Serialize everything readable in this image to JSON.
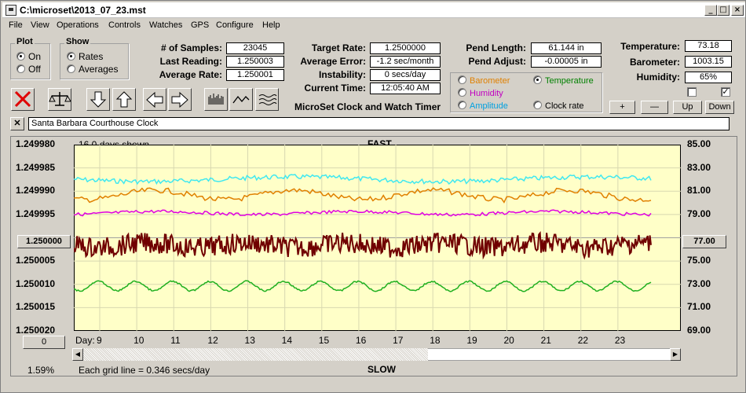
{
  "window": {
    "title": "C:\\microset\\2013_07_23.mst"
  },
  "menu": [
    "File",
    "View",
    "Operations",
    "Controls",
    "Watches",
    "GPS",
    "Configure",
    "Help"
  ],
  "plot_group": {
    "title": "Plot",
    "options": [
      {
        "label": "On",
        "checked": true
      },
      {
        "label": "Off",
        "checked": false
      }
    ]
  },
  "show_group": {
    "title": "Show",
    "options": [
      {
        "label": "Rates",
        "checked": true
      },
      {
        "label": "Averages",
        "checked": false
      }
    ]
  },
  "stats": {
    "samples_label": "# of Samples:",
    "samples": "23045",
    "last_reading_label": "Last Reading:",
    "last_reading": "1.250003",
    "average_rate_label": "Average Rate:",
    "average_rate": "1.250001",
    "target_rate_label": "Target Rate:",
    "target_rate": "1.2500000",
    "average_error_label": "Average Error:",
    "average_error": "-1.2 sec/month",
    "instability_label": "Instability:",
    "instability": "0 secs/day",
    "current_time_label": "Current Time:",
    "current_time": "12:05:40 AM",
    "pend_length_label": "Pend Length:",
    "pend_length": "61.144 in",
    "pend_adjust_label": "Pend Adjust:",
    "pend_adjust": "-0.00005 in",
    "temperature_label": "Temperature:",
    "temperature": "73.18",
    "barometer_label": "Barometer:",
    "barometer": "1003.15",
    "humidity_label": "Humidity:",
    "humidity": "65%"
  },
  "app_name": "MicroSet Clock and Watch Timer",
  "sensor_options": [
    {
      "label": "Barometer",
      "color": "#e08000",
      "checked": false
    },
    {
      "label": "Temperature",
      "color": "#008000",
      "checked": true
    },
    {
      "label": "Humidity",
      "color": "#c000c0",
      "checked": false
    },
    {
      "label": "Amplitude",
      "color": "#00a0e0",
      "checked": false
    },
    {
      "label": "Clock rate",
      "color": "#000000",
      "checked": false
    }
  ],
  "scale_buttons": [
    "+",
    "—",
    "Up",
    "Down"
  ],
  "checkboxes": [
    {
      "checked": false
    },
    {
      "checked": true
    }
  ],
  "clock_name": "Santa Barbara Courthouse Clock",
  "chart": {
    "days_shown": "16.0 days shown",
    "top_label": "FAST",
    "bottom_label": "SLOW",
    "day_prefix": "Day:",
    "grid_note": "Each grid line = 0.346 secs/day",
    "percent": "1.59%",
    "left_button": "1.250000",
    "right_button": "77.00",
    "offset_button": "0"
  },
  "chart_data": {
    "type": "line",
    "title": "FAST",
    "xlabel": "Day:",
    "x_ticks": [
      9,
      10,
      11,
      12,
      13,
      14,
      15,
      16,
      17,
      18,
      19,
      20,
      21,
      22,
      23
    ],
    "left_axis_ticks": [
      "1.249980",
      "1.249985",
      "1.249990",
      "1.249995",
      "1.250000",
      "1.250005",
      "1.250010",
      "1.250015",
      "1.250020"
    ],
    "right_axis_ticks": [
      "85.00",
      "83.00",
      "81.00",
      "79.00",
      "77.00",
      "75.00",
      "73.00",
      "71.00",
      "69.00"
    ],
    "xlim": [
      8.3,
      24.7
    ],
    "ylim_left": [
      1.24998,
      1.25002
    ],
    "ylim_right": [
      69,
      85
    ],
    "grid": true,
    "series": [
      {
        "name": "Clock rate",
        "color": "#7a0000",
        "approx_center": 1.25,
        "approx_range": [
          1.249998,
          1.250007
        ]
      },
      {
        "name": "Amplitude",
        "color": "#40e0e8"
      },
      {
        "name": "Barometer",
        "color": "#e08000"
      },
      {
        "name": "Humidity",
        "color": "#e000e0"
      },
      {
        "name": "Temperature",
        "color": "#20b020",
        "approx_range": [
          72.8,
          74.2
        ]
      }
    ]
  }
}
